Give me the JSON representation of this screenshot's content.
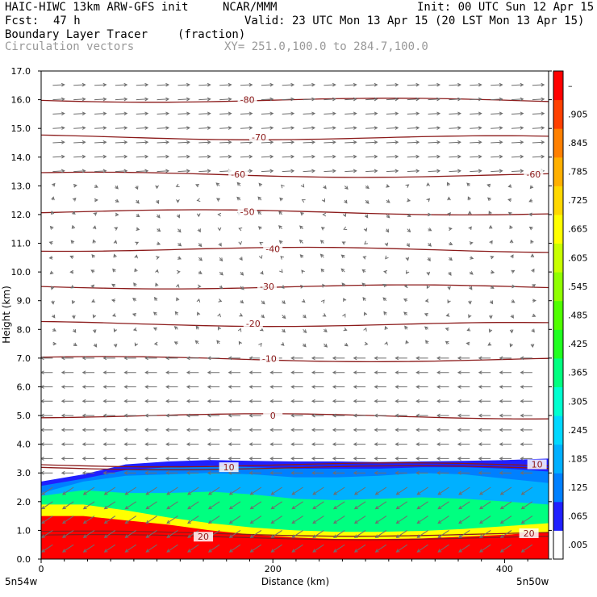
{
  "header": {
    "model": "HAIC-HIWC 13km ARW-GFS init",
    "org": "NCAR/MMM",
    "init": "Init: 00 UTC Sun 12 Apr 15",
    "fcst_label": "Fcst:",
    "fcst_value": "47 h",
    "valid": "Valid: 23 UTC Mon 13 Apr 15 (20 LST Mon 13 Apr 15)",
    "field": "Boundary Layer Tracer",
    "field_units": "(fraction)",
    "vectors": "Circulation vectors",
    "xy": "XY= 251.0,100.0 to 284.7,100.0"
  },
  "colors": {
    "contour": "#8b1a1a",
    "vector": "#6e6e6e",
    "text_grey": "#999999"
  },
  "chart_data": {
    "type": "heatmap",
    "xlabel": "Distance (km)",
    "ylabel": "Height (km)",
    "xlim": [
      0,
      438
    ],
    "ylim": [
      0.0,
      17.0
    ],
    "x_ticks": [
      "0",
      "200",
      "400"
    ],
    "y_ticks": [
      "0.0",
      "1.0",
      "2.0",
      "3.0",
      "4.0",
      "5.0",
      "6.0",
      "7.0",
      "8.0",
      "9.0",
      "10.0",
      "11.0",
      "12.0",
      "13.0",
      "14.0",
      "15.0",
      "16.0",
      "17.0"
    ],
    "x_start_label": "5n54w",
    "x_end_label": "5n50w",
    "colorbar": {
      "labels": [
        ".005",
        ".065",
        ".125",
        ".185",
        ".245",
        ".305",
        ".365",
        ".425",
        ".485",
        ".545",
        ".605",
        ".665",
        ".725",
        ".785",
        ".845",
        ".905",
        "–"
      ],
      "colors": [
        "#ffffff",
        "#2020ff",
        "#0080ff",
        "#00b0ff",
        "#00d8ff",
        "#00ffd0",
        "#00ff80",
        "#20ff20",
        "#50ff00",
        "#90ff00",
        "#c8ff00",
        "#ffff00",
        "#ffd800",
        "#ffb000",
        "#ff8000",
        "#ff4000",
        "#ff0000"
      ]
    },
    "contours": [
      {
        "label": "-80",
        "height_km": 16.0,
        "label_x_km": 178
      },
      {
        "label": "-70",
        "height_km": 14.7,
        "label_x_km": 188
      },
      {
        "label": "-60",
        "height_km": 13.4,
        "label_x_km": 170
      },
      {
        "label": "-60",
        "height_km": 13.4,
        "label_x_km": 425
      },
      {
        "label": "-50",
        "height_km": 12.1,
        "label_x_km": 178
      },
      {
        "label": "-40",
        "height_km": 10.8,
        "label_x_km": 200
      },
      {
        "label": "-30",
        "height_km": 9.5,
        "label_x_km": 195
      },
      {
        "label": "-20",
        "height_km": 8.2,
        "label_x_km": 183
      },
      {
        "label": "-10",
        "height_km": 6.98,
        "label_x_km": 197
      },
      {
        "label": "0",
        "height_km": 5.0,
        "label_x_km": 200
      },
      {
        "label": "10",
        "height_km": 3.2,
        "label_x_km": 162
      },
      {
        "label": "10",
        "height_km": 3.3,
        "label_x_km": 428
      },
      {
        "label": "20",
        "height_km": 0.78,
        "label_x_km": 140
      },
      {
        "label": "20",
        "height_km": 0.9,
        "label_x_km": 421
      }
    ],
    "tracer_layers": [
      {
        "value": 0.99,
        "top_km": [
          1.5,
          1.5,
          1.35,
          1.2,
          1.0,
          0.85,
          0.75,
          0.7,
          0.7,
          0.72,
          0.78,
          0.85,
          0.95
        ]
      },
      {
        "value": 0.7,
        "top_km": [
          1.9,
          1.9,
          1.7,
          1.45,
          1.25,
          1.1,
          1.0,
          0.95,
          0.95,
          0.98,
          1.05,
          1.15,
          1.25
        ]
      },
      {
        "value": 0.35,
        "top_km": [
          2.2,
          2.4,
          2.3,
          2.3,
          2.35,
          2.25,
          2.1,
          2.05,
          2.1,
          2.15,
          2.1,
          2.0,
          1.9
        ]
      },
      {
        "value": 0.185,
        "top_km": [
          2.3,
          2.7,
          2.9,
          2.95,
          3.0,
          2.95,
          2.85,
          2.85,
          2.9,
          3.0,
          2.95,
          2.8,
          2.65
        ]
      },
      {
        "value": 0.125,
        "top_km": [
          2.55,
          2.8,
          3.1,
          3.2,
          3.25,
          3.2,
          3.15,
          3.15,
          3.15,
          3.2,
          3.2,
          3.15,
          3.05
        ]
      },
      {
        "value": 0.065,
        "top_km": [
          2.7,
          2.95,
          3.3,
          3.4,
          3.45,
          3.42,
          3.4,
          3.4,
          3.38,
          3.4,
          3.42,
          3.45,
          3.5
        ]
      }
    ]
  }
}
